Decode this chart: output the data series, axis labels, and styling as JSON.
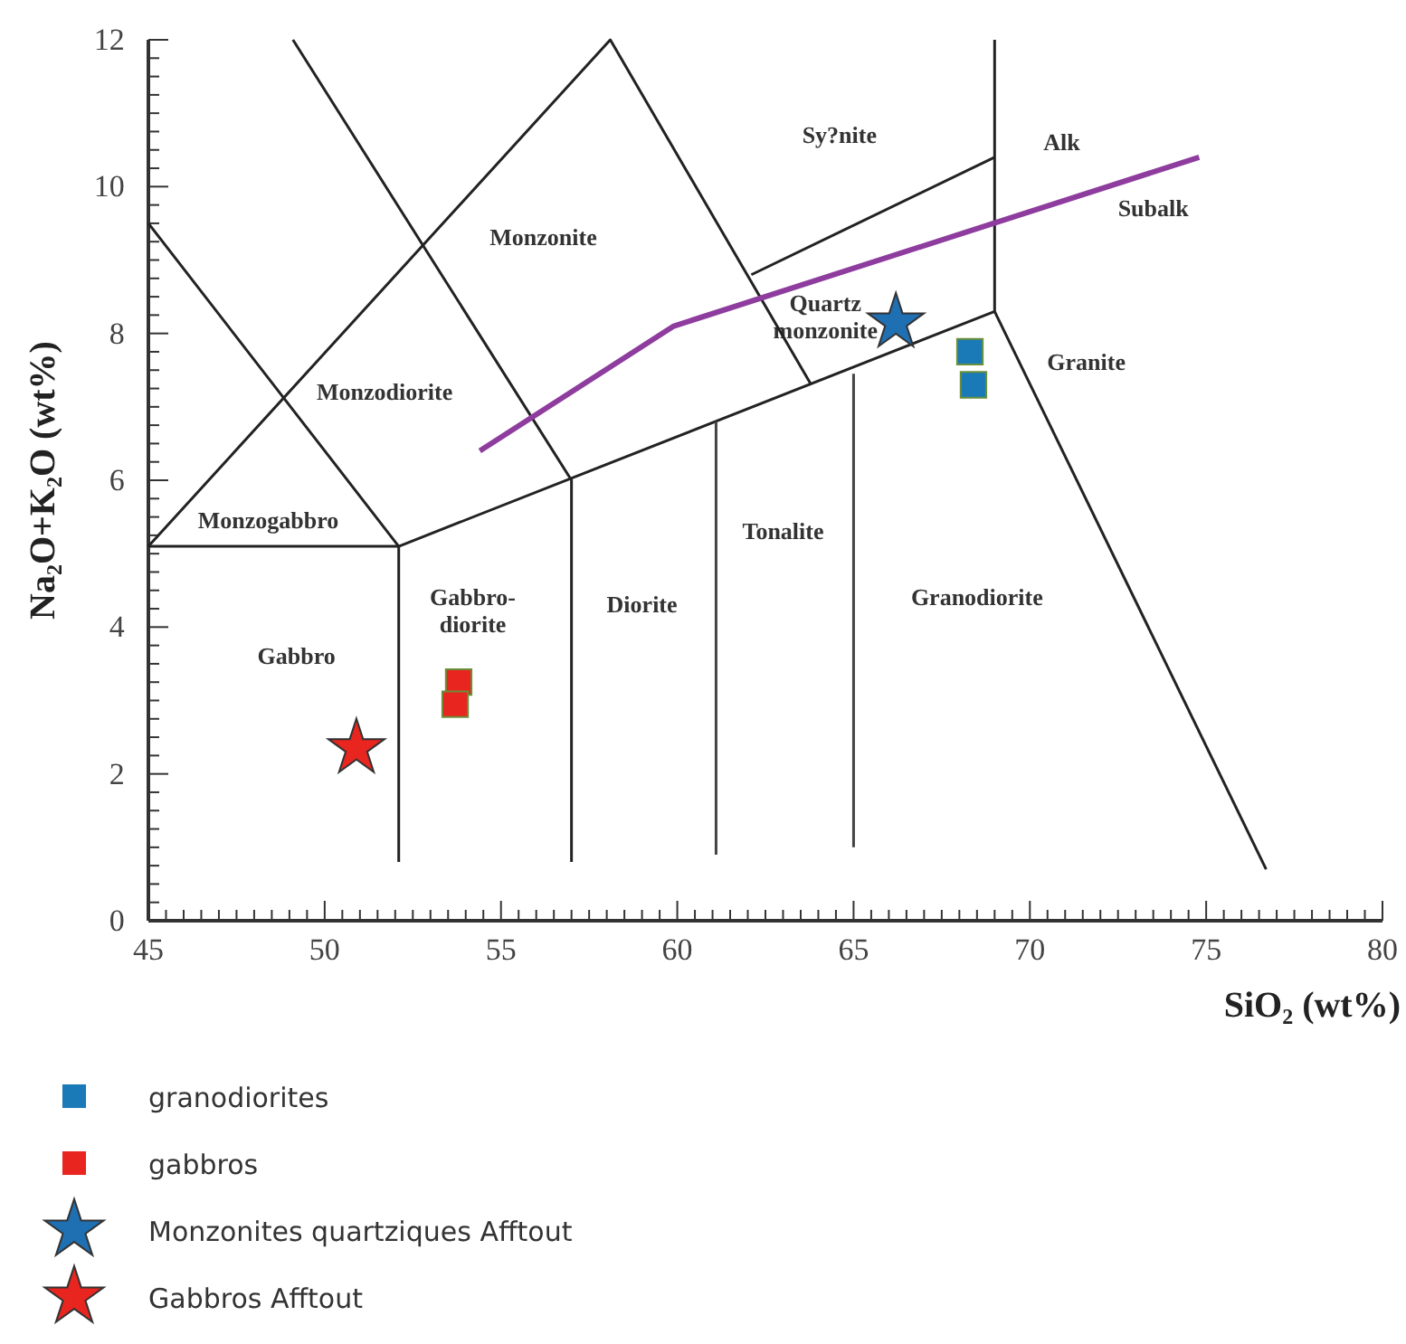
{
  "chart_data": {
    "type": "scatter",
    "xlabel": "SiO₂ (wt%)",
    "ylabel": "Na₂O+K₂O (wt%)",
    "xlim": [
      45,
      80
    ],
    "ylim": [
      0,
      12
    ],
    "xticks": [
      45,
      {
        "value": 45.5,
        "label": null
      },
      {
        "value": 46,
        "label": null
      },
      {
        "value": 46.5,
        "label": null
      },
      {
        "value": 47,
        "label": null
      },
      {
        "value": 47.5,
        "label": null
      },
      {
        "value": 48,
        "label": null
      },
      {
        "value": 48.5,
        "label": null
      },
      {
        "value": 49,
        "label": null
      },
      {
        "value": 49.5,
        "label": null
      },
      50,
      {
        "value": 50.5,
        "label": null
      },
      {
        "value": 51,
        "label": null
      },
      {
        "value": 51.5,
        "label": null
      },
      {
        "value": 52,
        "label": null
      },
      {
        "value": 52.5,
        "label": null
      },
      {
        "value": 53,
        "label": null
      },
      {
        "value": 53.5,
        "label": null
      },
      {
        "value": 54,
        "label": null
      },
      {
        "value": 54.5,
        "label": null
      },
      55,
      {
        "value": 55.5,
        "label": null
      },
      {
        "value": 56,
        "label": null
      },
      {
        "value": 56.5,
        "label": null
      },
      {
        "value": 57,
        "label": null
      },
      {
        "value": 57.5,
        "label": null
      },
      {
        "value": 58,
        "label": null
      },
      {
        "value": 58.5,
        "label": null
      },
      {
        "value": 59,
        "label": null
      },
      {
        "value": 59.5,
        "label": null
      },
      60,
      {
        "value": 60.5,
        "label": null
      },
      {
        "value": 61,
        "label": null
      },
      {
        "value": 61.5,
        "label": null
      },
      {
        "value": 62,
        "label": null
      },
      {
        "value": 62.5,
        "label": null
      },
      {
        "value": 63,
        "label": null
      },
      {
        "value": 63.5,
        "label": null
      },
      {
        "value": 64,
        "label": null
      },
      {
        "value": 64.5,
        "label": null
      },
      65,
      {
        "value": 65.5,
        "label": null
      },
      {
        "value": 66,
        "label": null
      },
      {
        "value": 66.5,
        "label": null
      },
      {
        "value": 67,
        "label": null
      },
      {
        "value": 67.5,
        "label": null
      },
      {
        "value": 68,
        "label": null
      },
      {
        "value": 68.5,
        "label": null
      },
      {
        "value": 69,
        "label": null
      },
      {
        "value": 69.5,
        "label": null
      },
      70,
      {
        "value": 70.5,
        "label": null
      },
      {
        "value": 71,
        "label": null
      },
      {
        "value": 71.5,
        "label": null
      },
      {
        "value": 72,
        "label": null
      },
      {
        "value": 72.5,
        "label": null
      },
      {
        "value": 73,
        "label": null
      },
      {
        "value": 73.5,
        "label": null
      },
      {
        "value": 74,
        "label": null
      },
      {
        "value": 74.5,
        "label": null
      },
      75,
      {
        "value": 75.5,
        "label": null
      },
      {
        "value": 76,
        "label": null
      },
      {
        "value": 76.5,
        "label": null
      },
      {
        "value": 77,
        "label": null
      },
      {
        "value": 77.5,
        "label": null
      },
      {
        "value": 78,
        "label": null
      },
      {
        "value": 78.5,
        "label": null
      },
      {
        "value": 79,
        "label": null
      },
      {
        "value": 79.5,
        "label": null
      },
      80
    ],
    "yticks": [
      0,
      {
        "value": 0.25,
        "label": null
      },
      {
        "value": 0.5,
        "label": null
      },
      {
        "value": 0.75,
        "label": null
      },
      {
        "value": 1,
        "label": null
      },
      {
        "value": 1.25,
        "label": null
      },
      {
        "value": 1.5,
        "label": null
      },
      {
        "value": 1.75,
        "label": null
      },
      2,
      {
        "value": 2.25,
        "label": null
      },
      {
        "value": 2.5,
        "label": null
      },
      {
        "value": 2.75,
        "label": null
      },
      {
        "value": 3,
        "label": null
      },
      {
        "value": 3.25,
        "label": null
      },
      {
        "value": 3.5,
        "label": null
      },
      {
        "value": 3.75,
        "label": null
      },
      4,
      {
        "value": 4.25,
        "label": null
      },
      {
        "value": 4.5,
        "label": null
      },
      {
        "value": 4.75,
        "label": null
      },
      {
        "value": 5,
        "label": null
      },
      {
        "value": 5.25,
        "label": null
      },
      {
        "value": 5.5,
        "label": null
      },
      {
        "value": 5.75,
        "label": null
      },
      6,
      {
        "value": 6.25,
        "label": null
      },
      {
        "value": 6.5,
        "label": null
      },
      {
        "value": 6.75,
        "label": null
      },
      {
        "value": 7,
        "label": null
      },
      {
        "value": 7.25,
        "label": null
      },
      {
        "value": 7.5,
        "label": null
      },
      {
        "value": 7.75,
        "label": null
      },
      8,
      {
        "value": 8.25,
        "label": null
      },
      {
        "value": 8.5,
        "label": null
      },
      {
        "value": 8.75,
        "label": null
      },
      {
        "value": 9,
        "label": null
      },
      {
        "value": 9.25,
        "label": null
      },
      {
        "value": 9.5,
        "label": null
      },
      {
        "value": 9.75,
        "label": null
      },
      10,
      {
        "value": 10.25,
        "label": null
      },
      {
        "value": 10.5,
        "label": null
      },
      {
        "value": 10.75,
        "label": null
      },
      {
        "value": 11,
        "label": null
      },
      {
        "value": 11.25,
        "label": null
      },
      {
        "value": 11.5,
        "label": null
      },
      {
        "value": 11.75,
        "label": null
      },
      12
    ],
    "legend": "bottom",
    "series": [
      {
        "type": "line",
        "color": "#222222",
        "marker": "none",
        "x": [
          45,
          52.1,
          69,
          69
        ],
        "values": [
          5.1,
          5.1,
          8.3,
          12
        ]
      },
      {
        "type": "line",
        "color": "#222222",
        "marker": "none",
        "x": [
          45,
          52.1,
          52.1
        ],
        "values": [
          9.5,
          5.1,
          0.8
        ]
      },
      {
        "type": "line",
        "color": "#222222",
        "marker": "none",
        "x": [
          45,
          58.1,
          63.8
        ],
        "values": [
          5.1,
          12,
          7.3
        ]
      },
      {
        "type": "line",
        "color": "#222222",
        "marker": "none",
        "x": [
          49.1,
          57,
          57
        ],
        "values": [
          12,
          6,
          0.8
        ]
      },
      {
        "type": "line",
        "color": "#444444",
        "marker": "none",
        "x": [
          61.1,
          61.1
        ],
        "values": [
          6.8,
          0.9
        ]
      },
      {
        "type": "line",
        "color": "#444444",
        "marker": "none",
        "x": [
          65,
          65
        ],
        "values": [
          7.45,
          1
        ]
      },
      {
        "type": "line",
        "color": "#222222",
        "marker": "none",
        "x": [
          69,
          76.7
        ],
        "values": [
          8.3,
          0.7
        ]
      },
      {
        "type": "line",
        "color": "#222222",
        "marker": "none",
        "x": [
          62.1,
          69
        ],
        "values": [
          8.8,
          10.4
        ]
      },
      {
        "type": "line",
        "color": "#8e3c9e",
        "marker": "none",
        "x": [
          54.4,
          59.9,
          74.8
        ],
        "values": [
          6.4,
          8.1,
          10.4
        ]
      },
      {
        "name": "granodiorites",
        "color": "#1a7ab8",
        "marker": "square",
        "x": [
          68.3,
          68.4
        ],
        "values": [
          7.75,
          7.3
        ]
      },
      {
        "name": "gabbros",
        "color": "#e8251f",
        "marker": "square",
        "x": [
          53.8,
          53.7
        ],
        "values": [
          3.25,
          2.95
        ]
      },
      {
        "name": "Monzonites quartziques Afftout",
        "color": "#1f6fb3",
        "marker": "star",
        "x": [
          66.2
        ],
        "values": [
          8.15
        ]
      },
      {
        "name": "Gabbros Afftout",
        "color": "#e8251f",
        "marker": "star",
        "x": [
          50.9
        ],
        "values": [
          2.35
        ]
      }
    ],
    "annotations": [
      "Monzonite",
      "Monzodiorite",
      "Monzogabbro",
      "Gabbro",
      "Gabbro-\ndiorite",
      "Diorite",
      "Tonalite",
      "Granodiorite",
      "Granite",
      "Quartz\nmonzonite",
      "Sy?nite",
      "Alk",
      "Subalk"
    ]
  }
}
